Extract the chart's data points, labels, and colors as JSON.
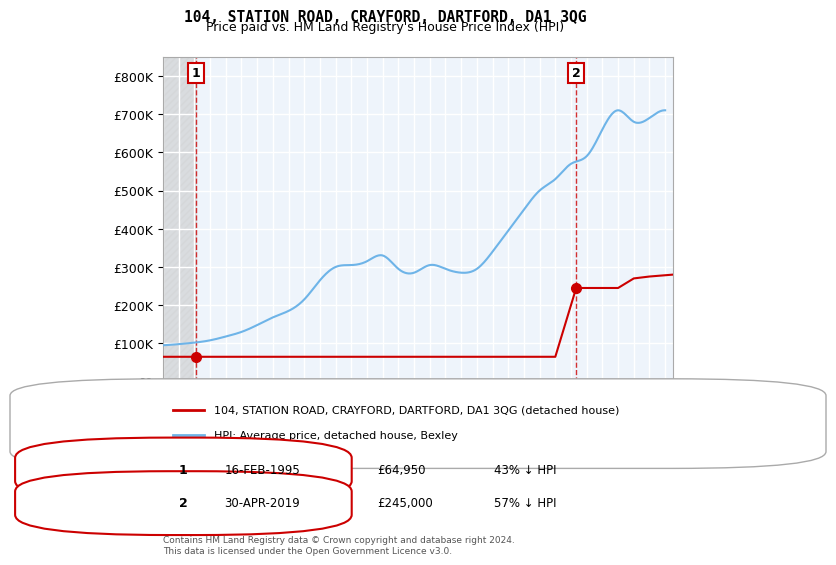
{
  "title1": "104, STATION ROAD, CRAYFORD, DARTFORD, DA1 3QG",
  "title2": "Price paid vs. HM Land Registry's House Price Index (HPI)",
  "legend_line1": "104, STATION ROAD, CRAYFORD, DARTFORD, DA1 3QG (detached house)",
  "legend_line2": "HPI: Average price, detached house, Bexley",
  "annotation1_label": "1",
  "annotation1_date": "16-FEB-1995",
  "annotation1_price": "£64,950",
  "annotation1_hpi": "43% ↓ HPI",
  "annotation2_label": "2",
  "annotation2_date": "30-APR-2019",
  "annotation2_price": "£245,000",
  "annotation2_hpi": "57% ↓ HPI",
  "footnote": "Contains HM Land Registry data © Crown copyright and database right 2024.\nThis data is licensed under the Open Government Licence v3.0.",
  "ylim": [
    0,
    850000
  ],
  "yticks": [
    0,
    100000,
    200000,
    300000,
    400000,
    500000,
    600000,
    700000,
    800000
  ],
  "ytick_labels": [
    "£0",
    "£100K",
    "£200K",
    "£300K",
    "£400K",
    "£500K",
    "£600K",
    "£700K",
    "£800K"
  ],
  "hpi_color": "#6eb4e8",
  "price_color": "#cc0000",
  "bg_hatch_color": "#d8d8d8",
  "plot_bg_color": "#eef4fb",
  "grid_color": "#ffffff",
  "transaction1_x": 1995.12,
  "transaction1_y": 64950,
  "transaction2_x": 2019.33,
  "transaction2_y": 245000,
  "xmin": 1993,
  "xmax": 2025.5
}
